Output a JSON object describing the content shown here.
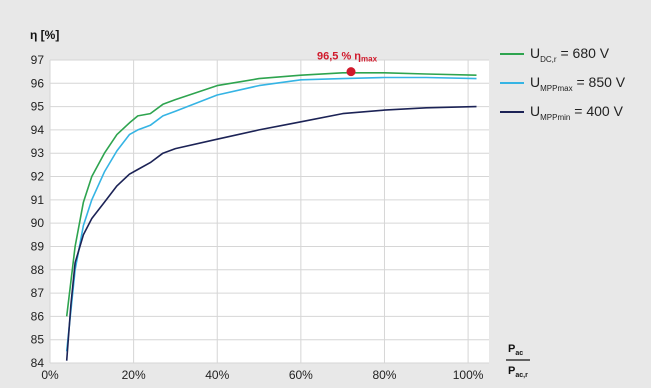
{
  "chart_data": {
    "type": "line",
    "ylabel": "η [%]",
    "xlabel": {
      "numerator": "P",
      "numerator_sub": "ac",
      "denominator": "P",
      "denominator_sub": "ac,r"
    },
    "ylim": [
      84,
      97
    ],
    "xlim": [
      0,
      105
    ],
    "yticks": [
      "84",
      "85",
      "86",
      "87",
      "88",
      "89",
      "90",
      "91",
      "92",
      "93",
      "94",
      "95",
      "96",
      "97"
    ],
    "xticks": [
      {
        "value": 0,
        "label": "0%"
      },
      {
        "value": 20,
        "label": "20%"
      },
      {
        "value": 40,
        "label": "40%"
      },
      {
        "value": 60,
        "label": "60%"
      },
      {
        "value": 80,
        "label": "80%"
      },
      {
        "value": 100,
        "label": "100%"
      }
    ],
    "grid": true,
    "legend_position": "right",
    "series": [
      {
        "main": "U",
        "sub": "DC,r",
        "suffix": " = 680 V",
        "color": "#2ea44f",
        "points": [
          [
            4,
            86.0
          ],
          [
            6,
            89.0
          ],
          [
            8,
            90.9
          ],
          [
            10,
            92.0
          ],
          [
            13,
            93.0
          ],
          [
            16,
            93.8
          ],
          [
            19,
            94.3
          ],
          [
            21,
            94.6
          ],
          [
            24,
            94.7
          ],
          [
            27,
            95.1
          ],
          [
            30,
            95.3
          ],
          [
            40,
            95.9
          ],
          [
            50,
            96.2
          ],
          [
            60,
            96.35
          ],
          [
            70,
            96.45
          ],
          [
            80,
            96.45
          ],
          [
            90,
            96.4
          ],
          [
            102,
            96.35
          ]
        ]
      },
      {
        "main": "U",
        "sub": "MPPmax",
        "suffix": " = 850 V",
        "color": "#35b4e4",
        "points": [
          [
            4,
            84.5
          ],
          [
            6,
            88.0
          ],
          [
            8,
            89.9
          ],
          [
            10,
            91.0
          ],
          [
            13,
            92.2
          ],
          [
            16,
            93.1
          ],
          [
            19,
            93.8
          ],
          [
            21,
            94.0
          ],
          [
            24,
            94.2
          ],
          [
            27,
            94.6
          ],
          [
            30,
            94.8
          ],
          [
            40,
            95.5
          ],
          [
            50,
            95.9
          ],
          [
            60,
            96.15
          ],
          [
            70,
            96.2
          ],
          [
            80,
            96.25
          ],
          [
            90,
            96.25
          ],
          [
            102,
            96.2
          ]
        ]
      },
      {
        "main": "U",
        "sub": "MPPmin",
        "suffix": " = 400 V",
        "color": "#1c2356",
        "points": [
          [
            4,
            84.1
          ],
          [
            5,
            86.5
          ],
          [
            6,
            88.3
          ],
          [
            8,
            89.5
          ],
          [
            10,
            90.2
          ],
          [
            13,
            90.9
          ],
          [
            16,
            91.6
          ],
          [
            19,
            92.1
          ],
          [
            21,
            92.3
          ],
          [
            24,
            92.6
          ],
          [
            27,
            93.0
          ],
          [
            30,
            93.2
          ],
          [
            40,
            93.6
          ],
          [
            50,
            94.0
          ],
          [
            60,
            94.35
          ],
          [
            70,
            94.7
          ],
          [
            80,
            94.85
          ],
          [
            90,
            94.95
          ],
          [
            102,
            95.0
          ]
        ]
      }
    ],
    "annotation": {
      "text": "96,5 % η",
      "sub": "max",
      "x": 72,
      "y": 96.5,
      "color": "#d0192b"
    }
  }
}
